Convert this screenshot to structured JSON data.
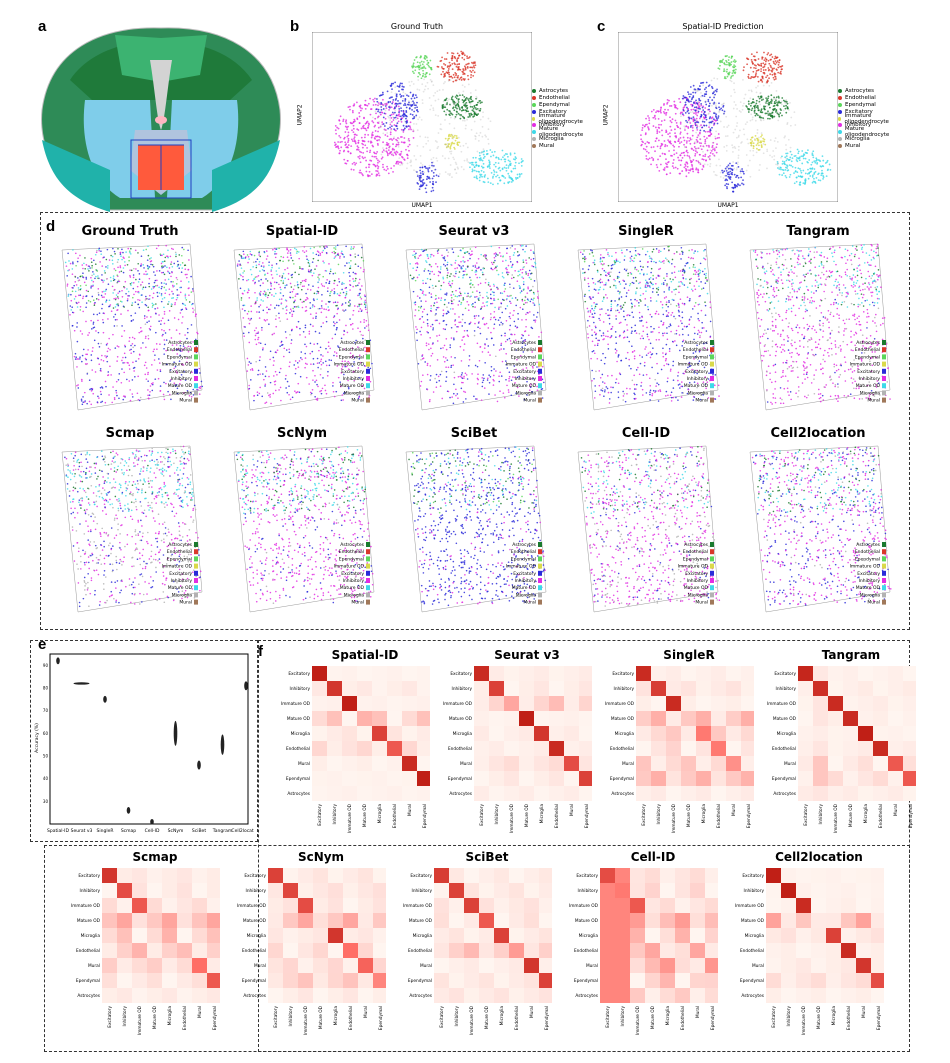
{
  "panels": {
    "a": "a",
    "b": "b",
    "c": "c",
    "d": "d",
    "e": "e",
    "f": "f"
  },
  "colors": {
    "Astrocytes": "#1a7a2e",
    "Endothelial": "#d9372b",
    "Ependymal": "#5bd65b",
    "Excitatory": "#2a2ad9",
    "Immature oligodendrocyte": "#d9d94a",
    "Inhibitory": "#e22ee2",
    "Mature oligodendrocyte": "#3ed9e8",
    "Microglia": "#b2b2b2",
    "Mural": "#a0785a"
  },
  "umap": {
    "xlabel": "UMAP1",
    "ylabel": "UMAP2",
    "legend": [
      "Astrocytes",
      "Endothelial",
      "Ependymal",
      "Excitatory",
      "Immature oligodendrocyte",
      "Inhibitory",
      "Mature oligodendrocyte",
      "Microglia",
      "Mural"
    ]
  },
  "chart_data": [
    {
      "panel": "b",
      "type": "scatter",
      "title": "Ground Truth",
      "xlabel": "UMAP1",
      "ylabel": "UMAP2",
      "legend": [
        "Astrocytes",
        "Endothelial",
        "Ependymal",
        "Excitatory",
        "Immature oligodendrocyte",
        "Inhibitory",
        "Mature oligodendrocyte",
        "Microglia",
        "Mural"
      ]
    },
    {
      "panel": "c",
      "type": "scatter",
      "title": "Spatial-ID Prediction",
      "xlabel": "UMAP1",
      "ylabel": "UMAP2",
      "legend": [
        "Astrocytes",
        "Endothelial",
        "Ependymal",
        "Excitatory",
        "Immature oligodendrocyte",
        "Inhibitory",
        "Mature oligodendrocyte",
        "Microglia",
        "Mural"
      ]
    },
    {
      "panel": "d",
      "type": "scatter",
      "titles": [
        "Ground Truth",
        "Spatial-ID",
        "Seurat v3",
        "SingleR",
        "Tangram",
        "Scmap",
        "ScNym",
        "SciBet",
        "Cell-ID",
        "Cell2location"
      ],
      "legend": [
        "Astrocytes",
        "Endothelial",
        "Ependymal",
        "Immature OD",
        "Excitatory",
        "Inhibitory",
        "Mature OD",
        "Microglia",
        "Mural"
      ]
    },
    {
      "panel": "e",
      "type": "violin",
      "ylabel": "Accuracy (%)",
      "categories": [
        "Spatial-ID",
        "Seurat v3",
        "SingleR",
        "Scmap",
        "Cell-ID",
        "ScNym",
        "SciBet",
        "Tangram",
        "Cell2location"
      ],
      "values": [
        92,
        82,
        75,
        26,
        21,
        60,
        46,
        55,
        81
      ],
      "spread": [
        1.5,
        0.3,
        1.5,
        1.5,
        1.2,
        5.5,
        2,
        4.5,
        2
      ],
      "ylim": [
        20,
        95
      ]
    },
    {
      "panel": "f",
      "type": "heatmap",
      "labels": [
        "Excitatory",
        "Inhibitory",
        "Immature OD",
        "Mature OD",
        "Microglia",
        "Endothelial",
        "Mural",
        "Ependymal",
        "Astrocytes"
      ],
      "titles": [
        "Spatial-ID",
        "Seurat v3",
        "SingleR",
        "Tangram",
        "Scmap",
        "ScNym",
        "SciBet",
        "Cell-ID",
        "Cell2location"
      ],
      "diag": [
        [
          0.95,
          0.9,
          0.9,
          0.92,
          0.85,
          0.8,
          0.82,
          0.75,
          0.95
        ],
        [
          0.85,
          0.8,
          0.82,
          0.88,
          0.75,
          0.78,
          0.8,
          0.55,
          0.95
        ],
        [
          0.95,
          0.35,
          0.9,
          0.9,
          0.7,
          0.75,
          0.8,
          0.7,
          0.9
        ],
        [
          0.3,
          0.95,
          0.2,
          0.9,
          0.2,
          0.1,
          0.7,
          0.1,
          0.05
        ],
        [
          0.8,
          0.85,
          0.55,
          0.95,
          0.3,
          0.85,
          0.8,
          0.1,
          0.8
        ],
        [
          0.7,
          0.9,
          0.55,
          0.9,
          0.25,
          0.6,
          0.4,
          0.1,
          0.9
        ],
        [
          0.9,
          0.75,
          0.45,
          0.7,
          0.6,
          0.65,
          0.85,
          0.05,
          0.85
        ],
        [
          0.95,
          0.8,
          0.3,
          0.7,
          0.7,
          0.5,
          0.8,
          0.15,
          0.75
        ],
        [
          0.95,
          0.9,
          0.85,
          0.9,
          0.85,
          0.8,
          0.82,
          0.5,
          0.9
        ]
      ]
    }
  ]
}
